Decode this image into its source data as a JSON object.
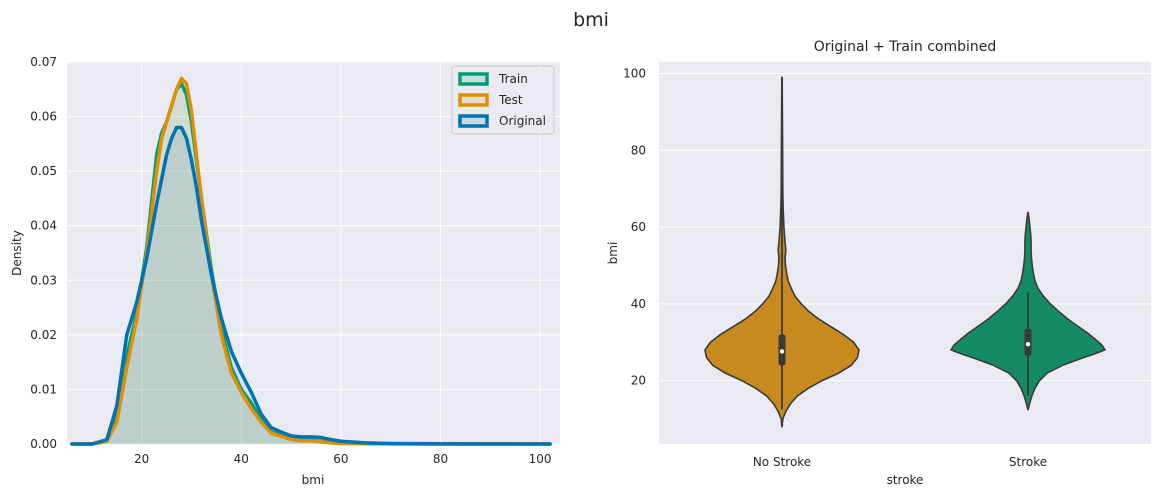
{
  "suptitle": "bmi",
  "chart_data": [
    {
      "type": "line",
      "subtype": "kde",
      "title": "",
      "xlabel": "bmi",
      "ylabel": "Density",
      "xlim": [
        5,
        104
      ],
      "ylim": [
        0,
        0.07
      ],
      "xticks": [
        20,
        40,
        60,
        80,
        100
      ],
      "xtick_labels": [
        "20",
        "40",
        "60",
        "80",
        "100"
      ],
      "yticks": [
        0,
        0.01,
        0.02,
        0.03,
        0.04,
        0.05,
        0.06,
        0.07
      ],
      "ytick_labels": [
        "0.00",
        "0.01",
        "0.02",
        "0.03",
        "0.04",
        "0.05",
        "0.06",
        "0.07"
      ],
      "grid": true,
      "legend_position": "top-right",
      "series": [
        {
          "name": "Train",
          "color": "#029e73",
          "x": [
            6,
            10,
            13,
            15,
            17,
            19,
            21,
            23,
            24,
            25,
            26,
            27,
            28,
            29,
            30,
            31,
            32,
            34,
            36,
            38,
            40,
            42,
            44,
            46,
            48,
            50,
            52,
            54,
            56,
            58,
            60,
            65,
            70,
            80,
            90,
            102
          ],
          "y": [
            0,
            0,
            0.0005,
            0.005,
            0.016,
            0.024,
            0.036,
            0.053,
            0.057,
            0.059,
            0.062,
            0.065,
            0.066,
            0.064,
            0.059,
            0.052,
            0.045,
            0.032,
            0.021,
            0.014,
            0.01,
            0.0075,
            0.0045,
            0.0022,
            0.0016,
            0.0009,
            0.0007,
            0.0007,
            0.0005,
            0.0003,
            0.0002,
            0.0001,
            5e-05,
            0,
            0,
            0
          ]
        },
        {
          "name": "Test",
          "color": "#de8f05",
          "x": [
            6,
            10,
            13,
            15,
            17,
            19,
            21,
            23,
            24,
            25,
            26,
            27,
            28,
            29,
            30,
            31,
            32,
            34,
            36,
            38,
            40,
            42,
            44,
            46,
            48,
            50,
            52,
            54,
            56,
            58,
            60,
            65,
            70,
            80,
            90,
            102
          ],
          "y": [
            0,
            0,
            0.0005,
            0.004,
            0.014,
            0.023,
            0.035,
            0.05,
            0.056,
            0.059,
            0.062,
            0.065,
            0.067,
            0.066,
            0.061,
            0.053,
            0.045,
            0.031,
            0.02,
            0.013,
            0.0095,
            0.0065,
            0.004,
            0.002,
            0.0014,
            0.0008,
            0.0006,
            0.0006,
            0.0004,
            0.0002,
            0.0001,
            5e-05,
            0,
            0,
            0,
            0
          ]
        },
        {
          "name": "Original",
          "color": "#0173b2",
          "x": [
            6,
            10,
            13,
            15,
            17,
            19,
            21,
            23,
            25,
            26,
            27,
            28,
            29,
            30,
            31,
            32,
            34,
            36,
            38,
            40,
            42,
            44,
            46,
            48,
            50,
            52,
            54,
            56,
            58,
            60,
            65,
            70,
            80,
            90,
            102
          ],
          "y": [
            0,
            0,
            0.0008,
            0.007,
            0.02,
            0.026,
            0.034,
            0.044,
            0.053,
            0.056,
            0.058,
            0.058,
            0.056,
            0.052,
            0.047,
            0.041,
            0.031,
            0.023,
            0.017,
            0.013,
            0.0095,
            0.0055,
            0.003,
            0.0022,
            0.0015,
            0.0013,
            0.0013,
            0.0012,
            0.0008,
            0.0005,
            0.0002,
            0.0001,
            4e-05,
            2e-05,
            0
          ]
        }
      ]
    },
    {
      "type": "violin",
      "title": "Original + Train combined",
      "xlabel": "stroke",
      "ylabel": "bmi",
      "categories": [
        "No Stroke",
        "Stroke"
      ],
      "ylim": [
        3.5,
        103
      ],
      "yticks": [
        20,
        40,
        60,
        80,
        100
      ],
      "ytick_labels": [
        "20",
        "40",
        "60",
        "80",
        "100"
      ],
      "grid": true,
      "violins": [
        {
          "name": "No Stroke",
          "color": "#c88a1e",
          "box": {
            "q1": 24,
            "median": 27.6,
            "q3": 32,
            "whisker_low": 12.5,
            "whisker_high": 99
          },
          "profile_y": [
            8,
            10,
            12,
            14,
            16,
            18,
            20,
            22,
            24,
            26,
            28,
            30,
            32,
            34,
            36,
            38,
            40,
            42,
            44,
            46,
            48,
            50,
            52,
            54,
            56,
            60,
            65,
            70,
            80,
            90,
            99
          ],
          "profile_w": [
            0.002,
            0.01,
            0.05,
            0.11,
            0.2,
            0.34,
            0.52,
            0.74,
            0.9,
            0.98,
            1.0,
            0.93,
            0.8,
            0.64,
            0.48,
            0.35,
            0.25,
            0.17,
            0.12,
            0.08,
            0.06,
            0.045,
            0.04,
            0.05,
            0.04,
            0.025,
            0.015,
            0.01,
            0.008,
            0.005,
            0.002
          ]
        },
        {
          "name": "Stroke",
          "color": "#148b65",
          "box": {
            "q1": 26.5,
            "median": 29.5,
            "q3": 33.5,
            "whisker_low": 16,
            "whisker_high": 43
          },
          "profile_y": [
            12.5,
            14,
            16,
            18,
            20,
            22,
            24,
            26,
            27,
            28,
            29,
            30,
            32,
            34,
            36,
            38,
            40,
            42,
            44,
            46,
            48,
            50,
            52,
            54,
            56,
            58,
            60,
            62,
            63.8
          ],
          "profile_w": [
            0.002,
            0.02,
            0.05,
            0.09,
            0.15,
            0.25,
            0.45,
            0.72,
            0.87,
            1.0,
            0.97,
            0.92,
            0.8,
            0.66,
            0.52,
            0.4,
            0.29,
            0.2,
            0.13,
            0.09,
            0.07,
            0.055,
            0.045,
            0.04,
            0.04,
            0.035,
            0.025,
            0.015,
            0.002
          ]
        }
      ]
    }
  ]
}
